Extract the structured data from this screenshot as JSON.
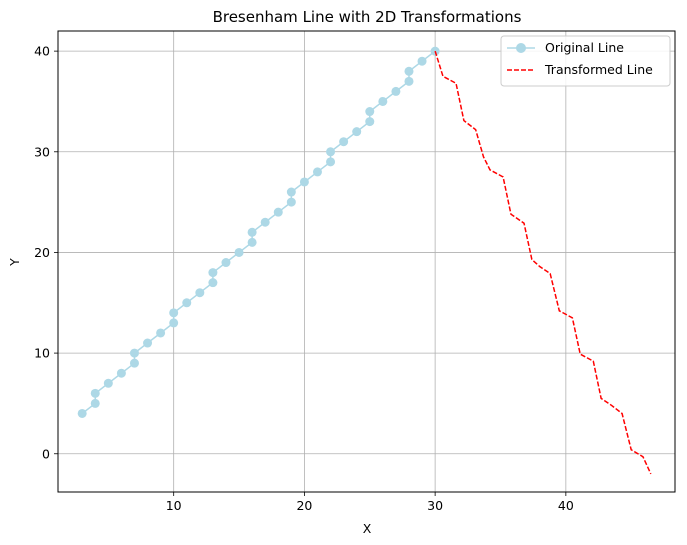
{
  "chart_data": {
    "type": "line",
    "title": "Bresenham Line with 2D Transformations",
    "xlabel": "X",
    "ylabel": "Y",
    "xlim": [
      1.15,
      48.35
    ],
    "ylim": [
      -3.8,
      42.0
    ],
    "xticks": [
      10,
      20,
      30,
      40
    ],
    "yticks": [
      0,
      10,
      20,
      30,
      40
    ],
    "grid": true,
    "legend_position": "top-right",
    "series": [
      {
        "name": "Original Line",
        "color": "#add8e6",
        "style": "solid",
        "marker": "circle",
        "points": [
          [
            3,
            4
          ],
          [
            4,
            5
          ],
          [
            4,
            6
          ],
          [
            5,
            7
          ],
          [
            6,
            8
          ],
          [
            7,
            9
          ],
          [
            7,
            10
          ],
          [
            8,
            11
          ],
          [
            9,
            12
          ],
          [
            10,
            13
          ],
          [
            10,
            14
          ],
          [
            11,
            15
          ],
          [
            12,
            16
          ],
          [
            13,
            17
          ],
          [
            13,
            18
          ],
          [
            14,
            19
          ],
          [
            15,
            20
          ],
          [
            16,
            21
          ],
          [
            16,
            22
          ],
          [
            17,
            23
          ],
          [
            18,
            24
          ],
          [
            19,
            25
          ],
          [
            19,
            26
          ],
          [
            20,
            27
          ],
          [
            21,
            28
          ],
          [
            22,
            29
          ],
          [
            22,
            30
          ],
          [
            23,
            31
          ],
          [
            24,
            32
          ],
          [
            25,
            33
          ],
          [
            25,
            34
          ],
          [
            26,
            35
          ],
          [
            27,
            36
          ],
          [
            28,
            37
          ],
          [
            28,
            38
          ],
          [
            29,
            39
          ],
          [
            30,
            40
          ]
        ]
      },
      {
        "name": "Transformed Line",
        "color": "#ff0000",
        "style": "dashed",
        "marker": "none",
        "points": [
          [
            30,
            40
          ],
          [
            30.6,
            37.5
          ],
          [
            31.6,
            36.8
          ],
          [
            32.2,
            33.1
          ],
          [
            33.1,
            32.2
          ],
          [
            33.7,
            29.5
          ],
          [
            34.2,
            28.2
          ],
          [
            35.2,
            27.5
          ],
          [
            35.8,
            23.8
          ],
          [
            36.8,
            22.9
          ],
          [
            37.4,
            19.3
          ],
          [
            38.0,
            18.6
          ],
          [
            38.8,
            17.9
          ],
          [
            39.5,
            14.2
          ],
          [
            40.5,
            13.5
          ],
          [
            41.1,
            9.9
          ],
          [
            42.1,
            9.2
          ],
          [
            42.7,
            5.5
          ],
          [
            43.5,
            4.8
          ],
          [
            44.3,
            4.0
          ],
          [
            45.0,
            0.4
          ],
          [
            45.9,
            -0.3
          ],
          [
            46.5,
            -2.0
          ]
        ]
      }
    ]
  }
}
